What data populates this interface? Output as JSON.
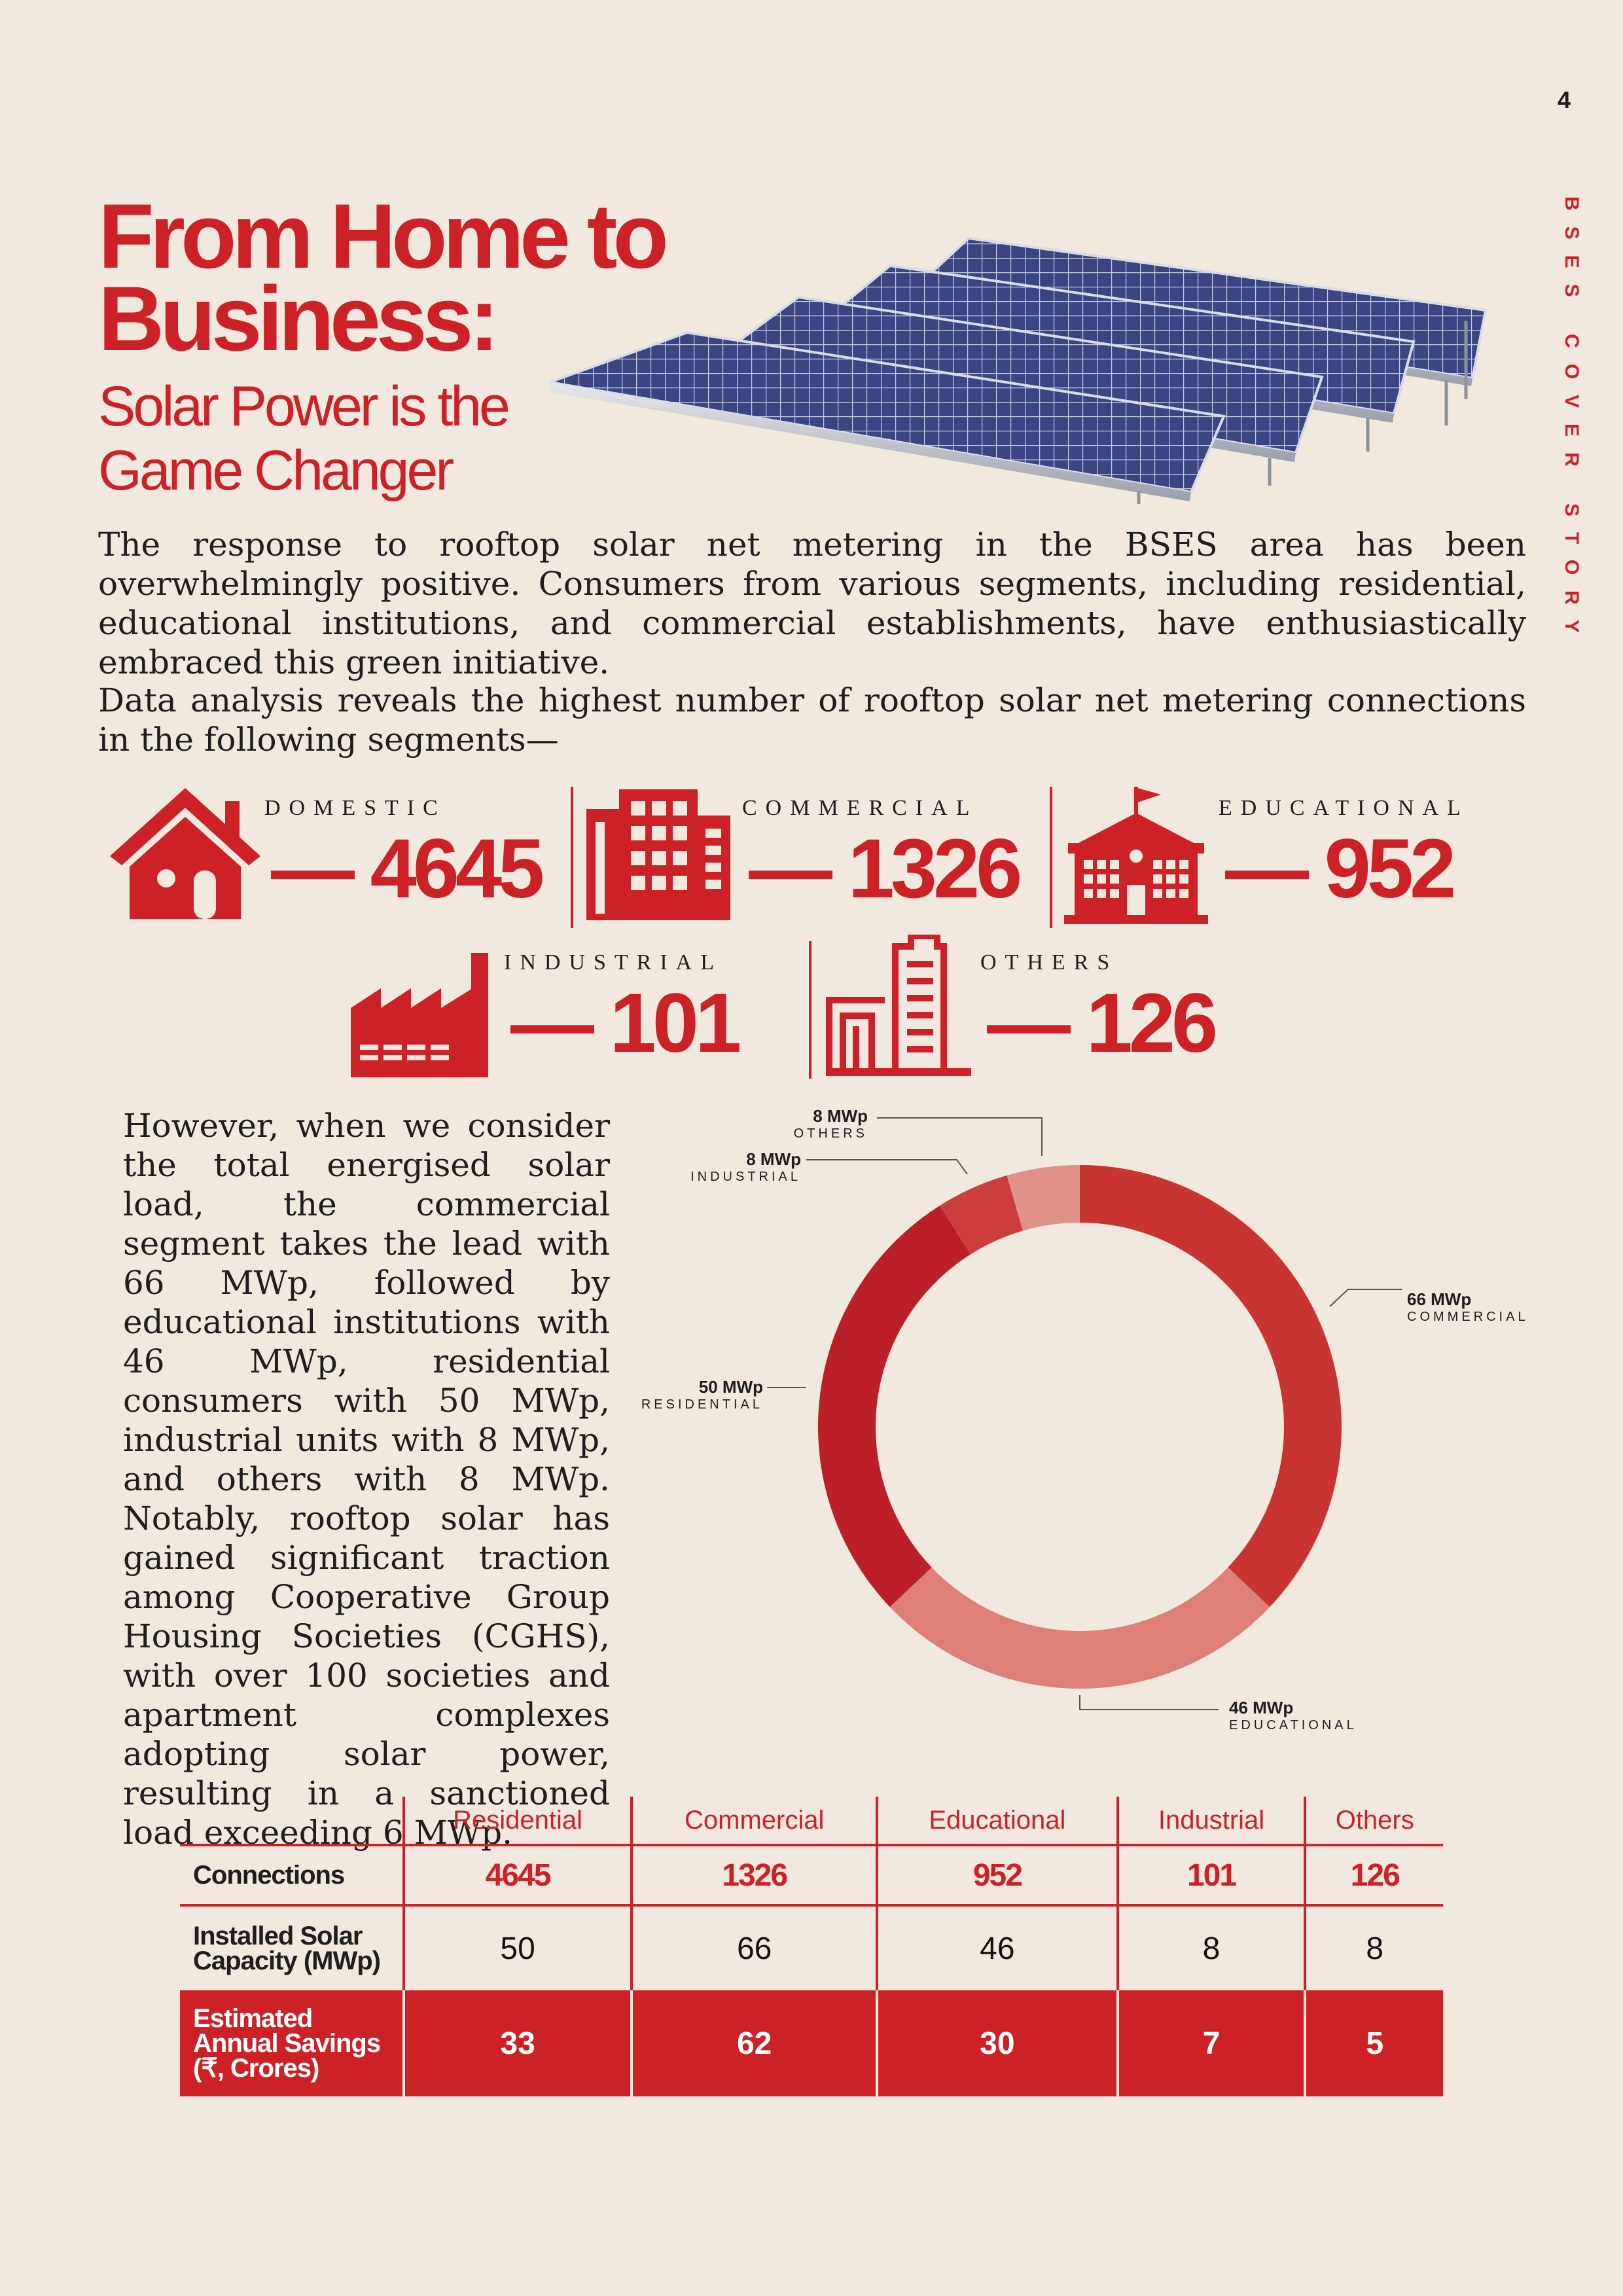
{
  "page_number": "4",
  "side_label": "BSES COVER STORY",
  "title": {
    "line1": "From Home to",
    "line2": "Business:",
    "sub1": "Solar Power is the",
    "sub2": "Game Changer"
  },
  "intro_paragraph": "The response to rooftop solar net metering in the BSES area has been overwhelmingly positive. Consumers from various segments, including residential, educational institutions, and commercial establishments, have enthusiastically embraced this green initiative.",
  "analysis_paragraph": "Data analysis reveals the highest number of rooftop solar net metering connections in the following segments—",
  "stats": {
    "domestic": {
      "label": "DOMESTIC",
      "value": "— 4645",
      "icon": "house-icon"
    },
    "commercial": {
      "label": "COMMERCIAL",
      "value": "— 1326",
      "icon": "office-building-icon"
    },
    "educational": {
      "label": "EDUCATIONAL",
      "value": "— 952",
      "icon": "school-icon"
    },
    "industrial": {
      "label": "INDUSTRIAL",
      "value": "— 101",
      "icon": "factory-icon"
    },
    "others": {
      "label": "OTHERS",
      "value": "— 126",
      "icon": "apartment-icon"
    }
  },
  "body_paragraph": "However, when we consider the total energised solar load, the commercial segment takes the lead with 66 MWp, followed by educational institutions with 46 MWp, residential consumers with 50 MWp, industrial units with 8 MWp, and others with 8 MWp. Notably, rooftop solar has gained significant traction among Cooperative Group Housing Societies (CGHS), with over 100 societies and apartment complexes adopting solar power, resulting in a sanctioned load exceeding 6 MWp.",
  "chart_data": {
    "type": "pie",
    "variant": "donut",
    "unit": "MWp",
    "slices": [
      {
        "segment": "COMMERCIAL",
        "label": "66 MWp",
        "value": 66,
        "color": "#c73432"
      },
      {
        "segment": "EDUCATIONAL",
        "label": "46 MWp",
        "value": 46,
        "color": "#de7f78"
      },
      {
        "segment": "RESIDENTIAL",
        "label": "50 MWp",
        "value": 50,
        "color": "#bb1f28"
      },
      {
        "segment": "INDUSTRIAL",
        "label": "8 MWp",
        "value": 8,
        "color": "#cc3d3d"
      },
      {
        "segment": "OTHERS",
        "label": "8 MWp",
        "value": 8,
        "color": "#e0928a"
      }
    ]
  },
  "table": {
    "columns": [
      "Residential",
      "Commercial",
      "Educational",
      "Industrial",
      "Others"
    ],
    "rows": [
      {
        "label": "Connections",
        "values": [
          "4645",
          "1326",
          "952",
          "101",
          "126"
        ]
      },
      {
        "label": "Installed Solar Capacity (MWp)",
        "values": [
          "50",
          "66",
          "46",
          "8",
          "8"
        ]
      },
      {
        "label": "Estimated Annual Savings (₹, Crores)",
        "values": [
          "33",
          "62",
          "30",
          "7",
          "5"
        ]
      }
    ]
  },
  "colors": {
    "accent": "#cb2127",
    "background": "#f1e8de",
    "panel": "#3a4582"
  }
}
